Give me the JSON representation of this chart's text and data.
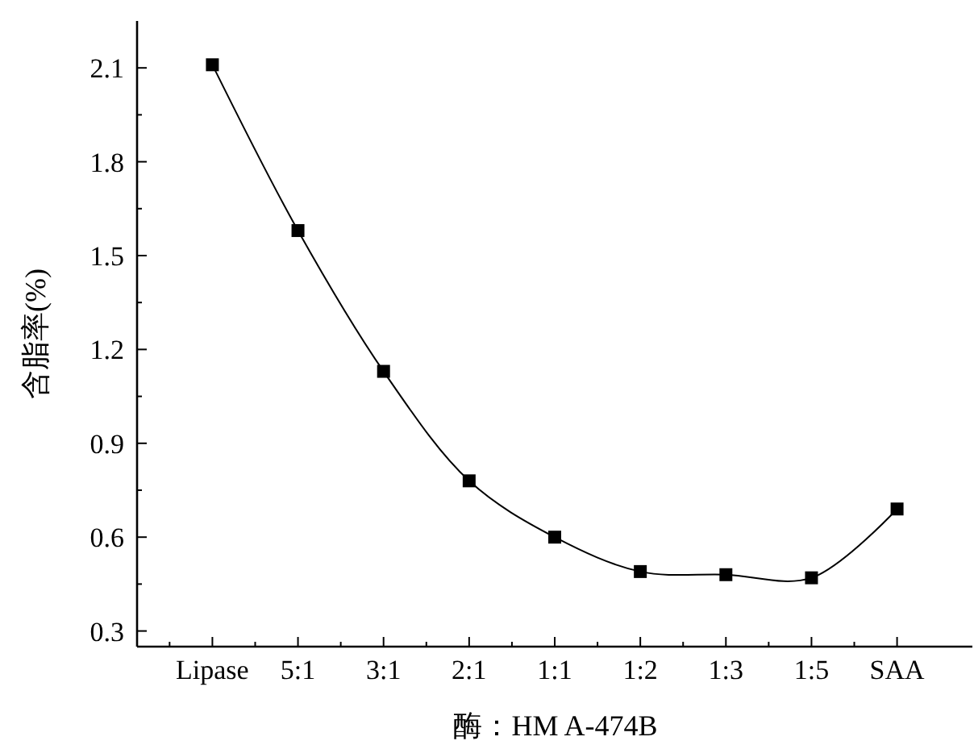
{
  "chart_data": {
    "type": "line",
    "xlabel": "酶：HM A-474B",
    "ylabel": "含脂率(%)",
    "categories": [
      "Lipase",
      "5:1",
      "3:1",
      "2:1",
      "1:1",
      "1:2",
      "1:3",
      "1:5",
      "SAA"
    ],
    "series": [
      {
        "color": "#000000",
        "values": [
          2.11,
          1.58,
          1.13,
          0.78,
          0.6,
          0.49,
          0.48,
          0.47,
          0.69
        ]
      }
    ],
    "ylim": [
      0.25,
      2.25
    ],
    "yticks": [
      0.3,
      {
        "value": 0.45,
        "label": null
      },
      0.6,
      {
        "value": 0.75,
        "label": null
      },
      0.9,
      {
        "value": 1.05,
        "label": null
      },
      1.2,
      {
        "value": 1.35,
        "label": null
      },
      1.5,
      {
        "value": 1.65,
        "label": null
      },
      1.8,
      {
        "value": 1.95,
        "label": null
      },
      2.1
    ],
    "marker": "square",
    "line_style": "solid",
    "grid": false
  }
}
